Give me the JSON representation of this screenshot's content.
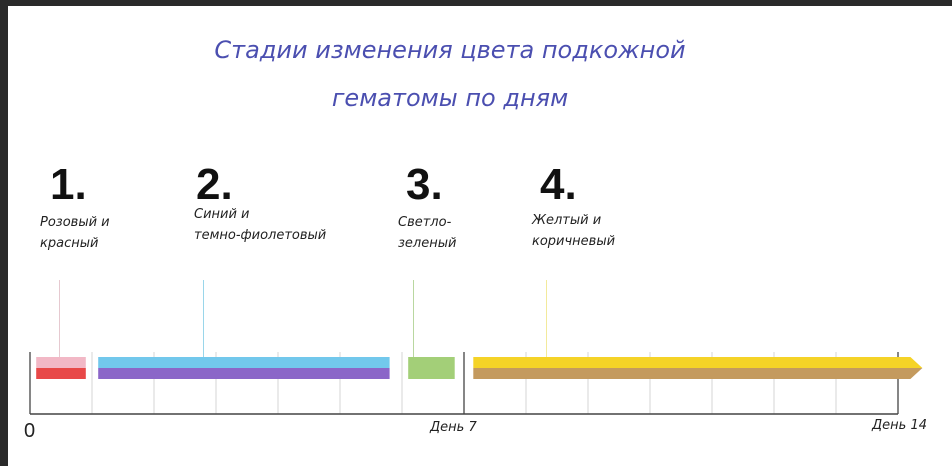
{
  "title": {
    "line1": "Стадии изменения цвета подкожной",
    "line2": "гематомы по дням"
  },
  "stages": [
    {
      "number": "1.",
      "label_lines": [
        "Розовый и",
        "красный"
      ],
      "start_day": 0.1,
      "end_day": 0.9,
      "colors": [
        "#f2b8c6",
        "#e84848"
      ]
    },
    {
      "number": "2.",
      "label_lines": [
        "Синий и",
        "темно-фиолетовый"
      ],
      "start_day": 1.1,
      "end_day": 5.8,
      "colors": [
        "#72c8ec",
        "#8b66c8"
      ]
    },
    {
      "number": "3.",
      "label_lines": [
        "Светло-",
        "зеленый"
      ],
      "start_day": 6.1,
      "end_day": 6.85,
      "colors": [
        "#a3cf78",
        "#a3cf78"
      ]
    },
    {
      "number": "4.",
      "label_lines": [
        "Желтый и",
        "коричневый"
      ],
      "start_day": 7.15,
      "end_day": 14.2,
      "colors": [
        "#f5d327",
        "#c49a5e"
      ]
    }
  ],
  "axis": {
    "min_label": "0",
    "mid_label": "День 7",
    "max_label": "День 14",
    "max_day": 14
  }
}
